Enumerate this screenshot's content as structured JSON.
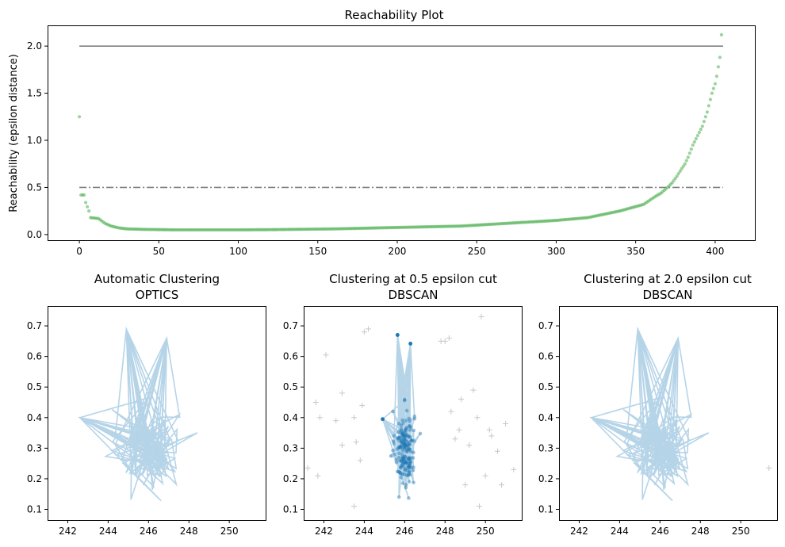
{
  "chart_data": [
    {
      "type": "scatter",
      "title": "Reachability Plot",
      "xlabel": "",
      "ylabel": "Reachability (epsilon distance)",
      "xlim": [
        -20,
        425
      ],
      "ylim": [
        -0.06,
        2.22
      ],
      "xticks": [
        "0",
        "50",
        "100",
        "150",
        "200",
        "250",
        "300",
        "350",
        "400"
      ],
      "yticks": [
        "0.0",
        "0.5",
        "1.0",
        "1.5",
        "2.0"
      ],
      "grid": false,
      "n_points": 405,
      "point_color": "#4caf50",
      "reachability_profile": [
        [
          0,
          1.25
        ],
        [
          1,
          0.42
        ],
        [
          3,
          0.42
        ],
        [
          4,
          0.34
        ],
        [
          6,
          0.25
        ],
        [
          7,
          0.18
        ],
        [
          12,
          0.17
        ],
        [
          16,
          0.12
        ],
        [
          20,
          0.09
        ],
        [
          25,
          0.07
        ],
        [
          30,
          0.06
        ],
        [
          40,
          0.055
        ],
        [
          60,
          0.05
        ],
        [
          100,
          0.05
        ],
        [
          120,
          0.052
        ],
        [
          160,
          0.06
        ],
        [
          200,
          0.075
        ],
        [
          240,
          0.09
        ],
        [
          260,
          0.11
        ],
        [
          300,
          0.15
        ],
        [
          320,
          0.18
        ],
        [
          340,
          0.25
        ],
        [
          355,
          0.32
        ],
        [
          362,
          0.4
        ],
        [
          366,
          0.44
        ],
        [
          370,
          0.5
        ],
        [
          373,
          0.55
        ],
        [
          376,
          0.62
        ],
        [
          379,
          0.7
        ],
        [
          381,
          0.75
        ],
        [
          383,
          0.82
        ],
        [
          386,
          0.95
        ],
        [
          389,
          1.05
        ],
        [
          392,
          1.15
        ],
        [
          395,
          1.3
        ],
        [
          398,
          1.5
        ],
        [
          400,
          1.6
        ],
        [
          401,
          1.68
        ],
        [
          402,
          1.78
        ],
        [
          403,
          1.88
        ],
        [
          404,
          2.12
        ]
      ],
      "reference_lines": [
        {
          "y": 2.0,
          "x_range": [
            0,
            405
          ],
          "style": "solid",
          "color": "#808080"
        },
        {
          "y": 0.5,
          "x_range": [
            0,
            405
          ],
          "style": "dashdot",
          "color": "#808080"
        }
      ]
    },
    {
      "type": "scatter",
      "title": "Automatic Clustering",
      "subtitle": "OPTICS",
      "xlim": [
        241,
        251.8
      ],
      "ylim": [
        0.065,
        0.765
      ],
      "xticks": [
        "242",
        "244",
        "246",
        "248",
        "250"
      ],
      "yticks": [
        "0.1",
        "0.2",
        "0.3",
        "0.4",
        "0.5",
        "0.6",
        "0.7"
      ],
      "cluster_line_color": "#b6d4e8",
      "noise_points": []
    },
    {
      "type": "scatter",
      "title": "Clustering at 0.5 epsilon cut",
      "subtitle": "DBSCAN",
      "xlim": [
        241,
        251.8
      ],
      "ylim": [
        0.065,
        0.765
      ],
      "xticks": [
        "242",
        "244",
        "246",
        "248",
        "250"
      ],
      "yticks": [
        "0.1",
        "0.2",
        "0.3",
        "0.4",
        "0.5",
        "0.6",
        "0.7"
      ],
      "cluster_line_color": "#b6d4e8",
      "cluster_point_color": "#1f77b4",
      "noise_color": "#c8c8c8",
      "noise_points": [
        [
          241.2,
          0.235
        ],
        [
          241.6,
          0.45
        ],
        [
          241.7,
          0.21
        ],
        [
          241.8,
          0.4
        ],
        [
          242.1,
          0.605
        ],
        [
          242.6,
          0.39
        ],
        [
          242.9,
          0.48
        ],
        [
          242.9,
          0.31
        ],
        [
          243.5,
          0.4
        ],
        [
          243.5,
          0.11
        ],
        [
          243.6,
          0.32
        ],
        [
          243.8,
          0.26
        ],
        [
          243.9,
          0.44
        ],
        [
          244.0,
          0.68
        ],
        [
          244.2,
          0.69
        ],
        [
          247.8,
          0.65
        ],
        [
          248.0,
          0.65
        ],
        [
          248.2,
          0.66
        ],
        [
          248.3,
          0.42
        ],
        [
          248.5,
          0.33
        ],
        [
          248.7,
          0.36
        ],
        [
          248.8,
          0.46
        ],
        [
          249.0,
          0.18
        ],
        [
          249.2,
          0.31
        ],
        [
          249.4,
          0.49
        ],
        [
          249.6,
          0.4
        ],
        [
          249.7,
          0.11
        ],
        [
          249.8,
          0.73
        ],
        [
          250.0,
          0.21
        ],
        [
          250.2,
          0.36
        ],
        [
          250.3,
          0.34
        ],
        [
          250.6,
          0.29
        ],
        [
          250.8,
          0.18
        ],
        [
          251.0,
          0.38
        ],
        [
          251.4,
          0.23
        ]
      ]
    },
    {
      "type": "scatter",
      "title": "Clustering at 2.0 epsilon cut",
      "subtitle": "DBSCAN",
      "xlim": [
        241,
        251.8
      ],
      "ylim": [
        0.065,
        0.765
      ],
      "xticks": [
        "242",
        "244",
        "246",
        "248",
        "250"
      ],
      "yticks": [
        "0.1",
        "0.2",
        "0.3",
        "0.4",
        "0.5",
        "0.6",
        "0.7"
      ],
      "cluster_line_color": "#b6d4e8",
      "noise_color": "#c8c8c8",
      "noise_points": [
        [
          251.4,
          0.235
        ]
      ]
    }
  ]
}
